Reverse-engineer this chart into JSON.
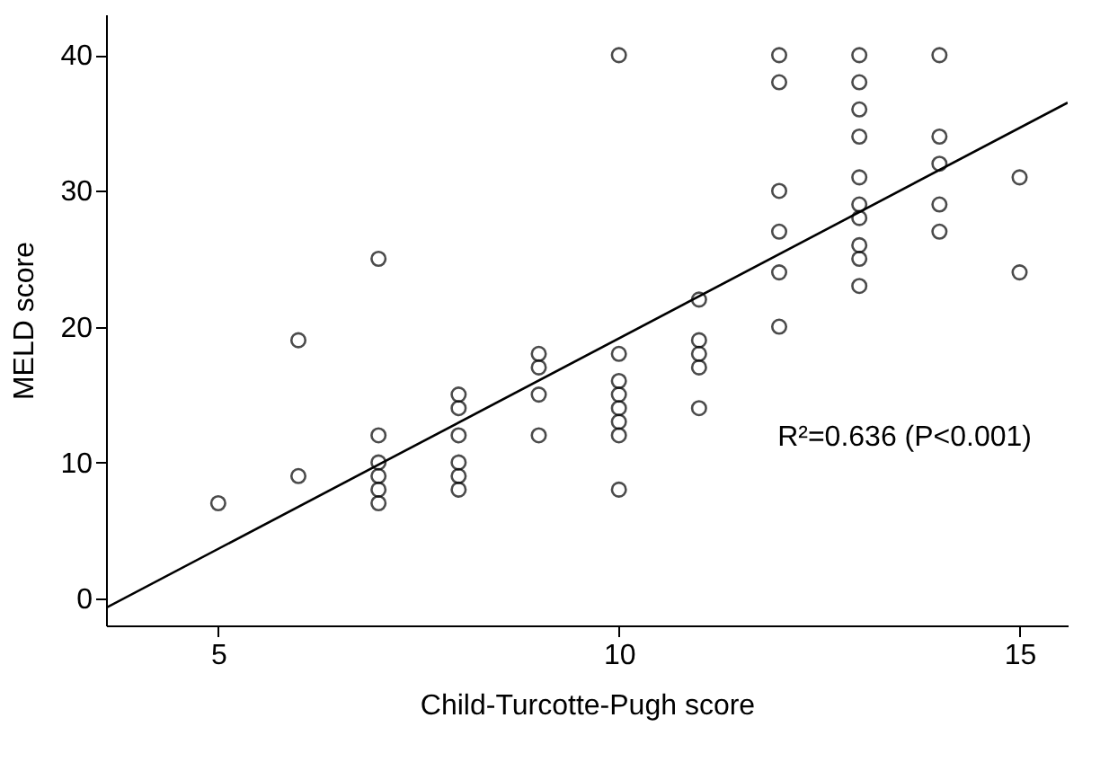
{
  "chart_data": {
    "type": "scatter",
    "xlabel": "Child-Turcotte-Pugh score",
    "ylabel": "MELD score",
    "xlim": [
      3.6,
      15.6
    ],
    "xticks": [
      5,
      10,
      15
    ],
    "ylim": [
      -2,
      43
    ],
    "yticks": [
      0,
      10,
      20,
      30,
      40
    ],
    "grid": false,
    "series": [
      {
        "color": "#000000",
        "marker": "circle",
        "x": [
          5,
          6,
          6,
          7,
          7,
          7,
          7,
          7,
          7,
          8,
          8,
          8,
          8,
          8,
          8,
          9,
          9,
          9,
          9,
          10,
          10,
          10,
          10,
          10,
          10,
          10,
          10,
          11,
          11,
          11,
          11,
          11,
          12,
          12,
          12,
          12,
          12,
          12,
          13,
          13,
          13,
          13,
          13,
          13,
          13,
          13,
          13,
          13,
          14,
          14,
          14,
          14,
          14,
          15,
          15
        ],
        "values": [
          7,
          19,
          9,
          25,
          12,
          10,
          9,
          8,
          7,
          15,
          14,
          12,
          10,
          9,
          8,
          18,
          17,
          15,
          12,
          40,
          18,
          16,
          15,
          14,
          13,
          12,
          8,
          22,
          19,
          18,
          17,
          14,
          40,
          38,
          30,
          27,
          24,
          20,
          40,
          38,
          36,
          34,
          31,
          29,
          28,
          26,
          25,
          23,
          40,
          34,
          32,
          29,
          27,
          31,
          24
        ]
      },
      {
        "type": "line",
        "color": "#000000",
        "x": [
          3.6,
          15.6
        ],
        "values": [
          -0.7,
          36.5
        ]
      }
    ],
    "annotations": [
      "R²=0.636 (P<0.001)"
    ]
  }
}
